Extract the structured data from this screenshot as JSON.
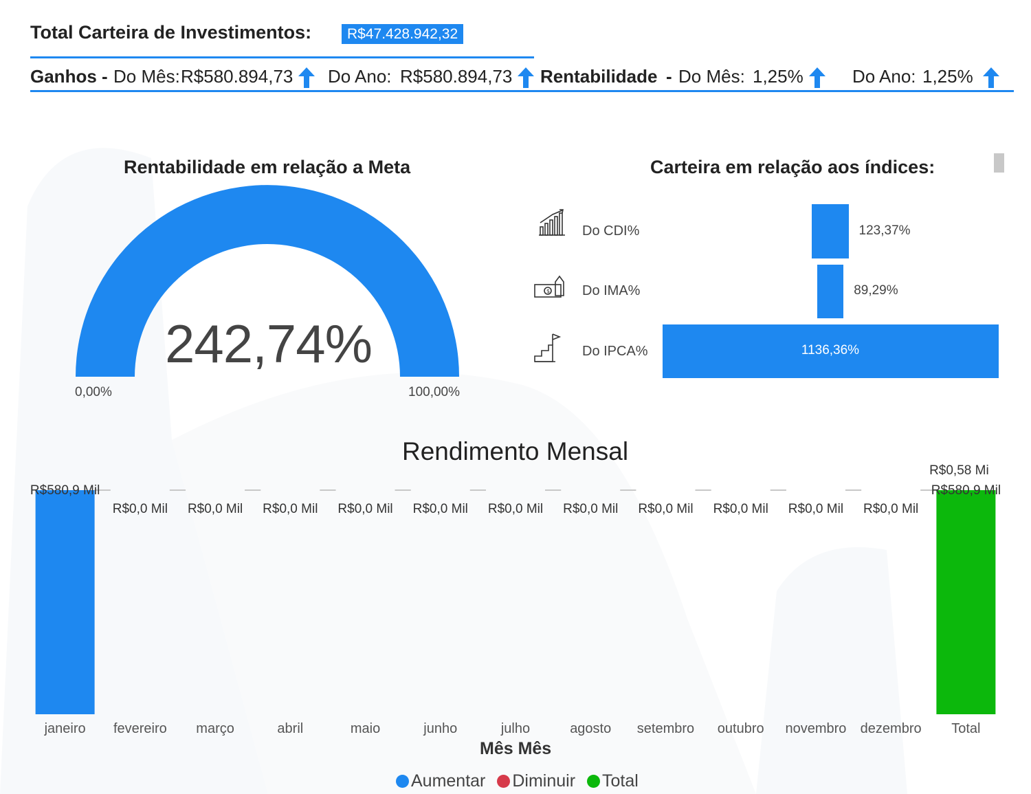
{
  "header": {
    "title": "Total Carteira de Investimentos:",
    "total_value": "R$47.428.942,32",
    "ganhos_label": "Ganhos",
    "dash": "-",
    "do_mes_label": "Do Mês:",
    "ganho_mes": "R$580.894,73",
    "do_ano_label": "Do Ano:",
    "ganho_ano": "R$580.894,73",
    "rent_label": "Rentabilidade",
    "rent_mes": "1,25%",
    "rent_ano": "1,25%",
    "arrow_icon": "arrow-up-icon"
  },
  "gauge": {
    "title": "Rentabilidade em relação a Meta",
    "value_label": "242,74%",
    "value": 242.74,
    "min_label": "0,00%",
    "max_label": "100,00%",
    "min": 0,
    "max": 100,
    "color": "#1e88f0"
  },
  "indices": {
    "title": "Carteira em relação aos índices:",
    "items": [
      {
        "label": "Do CDI%",
        "value_label": "123,37%",
        "value": 123.37,
        "icon": "chart-growth-icon"
      },
      {
        "label": "Do IMA%",
        "value_label": "89,29%",
        "value": 89.29,
        "icon": "money-house-icon"
      },
      {
        "label": "Do IPCA%",
        "value_label": "1136,36%",
        "value": 1136.36,
        "icon": "stairs-flag-icon"
      }
    ]
  },
  "waterfall": {
    "title": "Rendimento Mensal",
    "xlabel": "Mês Mês",
    "legend": [
      {
        "name": "Aumentar",
        "color": "#1e88f0"
      },
      {
        "name": "Diminuir",
        "color": "#d63a4a"
      },
      {
        "name": "Total",
        "color": "#0cb80c"
      }
    ],
    "total_top_label": "R$0,58 Mi"
  },
  "chart_data": {
    "type": "bar",
    "subtype": "waterfall",
    "title": "Rendimento Mensal",
    "xlabel": "Mês Mês",
    "ylabel": "",
    "categories": [
      "janeiro",
      "fevereiro",
      "março",
      "abril",
      "maio",
      "junho",
      "julho",
      "agosto",
      "setembro",
      "outubro",
      "novembro",
      "dezembro",
      "Total"
    ],
    "values": [
      580.9,
      0,
      0,
      0,
      0,
      0,
      0,
      0,
      0,
      0,
      0,
      0,
      580.9
    ],
    "data_labels": [
      "R$580,9 Mil",
      "R$0,0 Mil",
      "R$0,0 Mil",
      "R$0,0 Mil",
      "R$0,0 Mil",
      "R$0,0 Mil",
      "R$0,0 Mil",
      "R$0,0 Mil",
      "R$0,0 Mil",
      "R$0,0 Mil",
      "R$0,0 Mil",
      "R$0,0 Mil",
      "R$580,9 Mil"
    ],
    "kinds": [
      "Aumentar",
      "Aumentar",
      "Aumentar",
      "Aumentar",
      "Aumentar",
      "Aumentar",
      "Aumentar",
      "Aumentar",
      "Aumentar",
      "Aumentar",
      "Aumentar",
      "Aumentar",
      "Total"
    ],
    "series": [
      {
        "name": "Aumentar",
        "color": "#1e88f0"
      },
      {
        "name": "Diminuir",
        "color": "#d63a4a"
      },
      {
        "name": "Total",
        "color": "#0cb80c"
      }
    ],
    "ylim": [
      0,
      580.9
    ],
    "grid": false,
    "legend_position": "bottom-center"
  }
}
